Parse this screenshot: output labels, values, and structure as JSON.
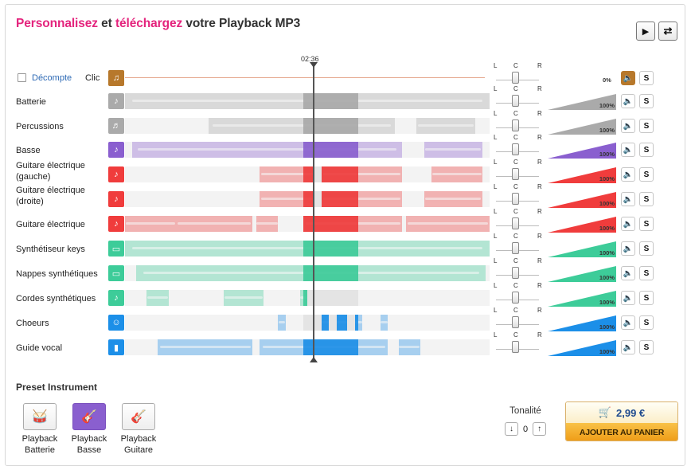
{
  "title": {
    "part1": "Personnalisez",
    "part2": " et ",
    "part3": "téléchargez",
    "part4": " votre Playback MP3"
  },
  "controls": {
    "play_icon": "play-icon",
    "loop_icon": "loop-icon"
  },
  "playhead": {
    "time": "02:36",
    "position_fraction": 0.517
  },
  "click_row": {
    "countdown_label": "Décompte",
    "click_label": "Clic",
    "volume_pct": "0%",
    "solo": "S"
  },
  "pan_labels": {
    "left": "L",
    "center": "C",
    "right": "R"
  },
  "tracks": [
    {
      "name": "Batterie",
      "color": "#aaaaaa",
      "volume": "100%",
      "solo": "S",
      "segments": [
        [
          0,
          1
        ]
      ]
    },
    {
      "name": "Percussions",
      "color": "#aaaaaa",
      "volume": "100%",
      "solo": "S",
      "segments": [
        [
          0.23,
          0.74
        ],
        [
          0.8,
          0.96
        ]
      ]
    },
    {
      "name": "Basse",
      "color": "#8a5fcf",
      "volume": "100%",
      "solo": "S",
      "segments": [
        [
          0.02,
          0.76
        ],
        [
          0.82,
          0.98
        ]
      ]
    },
    {
      "name": "Guitare électrique\n(gauche)",
      "color": "#f03c3c",
      "volume": "100%",
      "solo": "S",
      "segments": [
        [
          0.37,
          0.52
        ],
        [
          0.54,
          0.76
        ],
        [
          0.84,
          0.98
        ]
      ]
    },
    {
      "name": "Guitare électrique\n(droite)",
      "color": "#f03c3c",
      "volume": "100%",
      "solo": "S",
      "segments": [
        [
          0.37,
          0.52
        ],
        [
          0.54,
          0.76
        ],
        [
          0.82,
          0.98
        ]
      ]
    },
    {
      "name": "Guitare électrique",
      "color": "#f03c3c",
      "volume": "100%",
      "solo": "S",
      "segments": [
        [
          0,
          0.14
        ],
        [
          0.14,
          0.35
        ],
        [
          0.36,
          0.42
        ],
        [
          0.49,
          0.76
        ],
        [
          0.77,
          1
        ]
      ]
    },
    {
      "name": "Synthétiseur keys",
      "color": "#3dcc99",
      "volume": "100%",
      "solo": "S",
      "segments": [
        [
          0,
          1
        ]
      ]
    },
    {
      "name": "Nappes synthétiques",
      "color": "#3dcc99",
      "volume": "100%",
      "solo": "S",
      "segments": [
        [
          0.03,
          0.99
        ]
      ]
    },
    {
      "name": "Cordes synthétiques",
      "color": "#3dcc99",
      "volume": "100%",
      "solo": "S",
      "segments": [
        [
          0.06,
          0.12
        ],
        [
          0.27,
          0.38
        ],
        [
          0.48,
          0.5
        ]
      ]
    },
    {
      "name": "Choeurs",
      "color": "#1c8fe8",
      "volume": "100%",
      "solo": "S",
      "segments": [
        [
          0.42,
          0.44
        ],
        [
          0.54,
          0.56
        ],
        [
          0.58,
          0.61
        ],
        [
          0.63,
          0.65
        ],
        [
          0.7,
          0.72
        ]
      ]
    },
    {
      "name": "Guide vocal",
      "color": "#1c8fe8",
      "volume": "100%",
      "solo": "S",
      "segments": [
        [
          0.09,
          0.35
        ],
        [
          0.37,
          0.72
        ],
        [
          0.75,
          0.81
        ]
      ]
    }
  ],
  "presets": {
    "title": "Preset Instrument",
    "items": [
      {
        "label": "Playback\nBatterie",
        "icon": "drum-kit-icon"
      },
      {
        "label": "Playback\nBasse",
        "icon": "bass-guitar-icon"
      },
      {
        "label": "Playback\nGuitare",
        "icon": "electric-guitar-icon"
      }
    ]
  },
  "tonality": {
    "label": "Tonalité",
    "value": "0"
  },
  "cart": {
    "price": "2,99 €",
    "button": "AJOUTER AU PANIER"
  }
}
